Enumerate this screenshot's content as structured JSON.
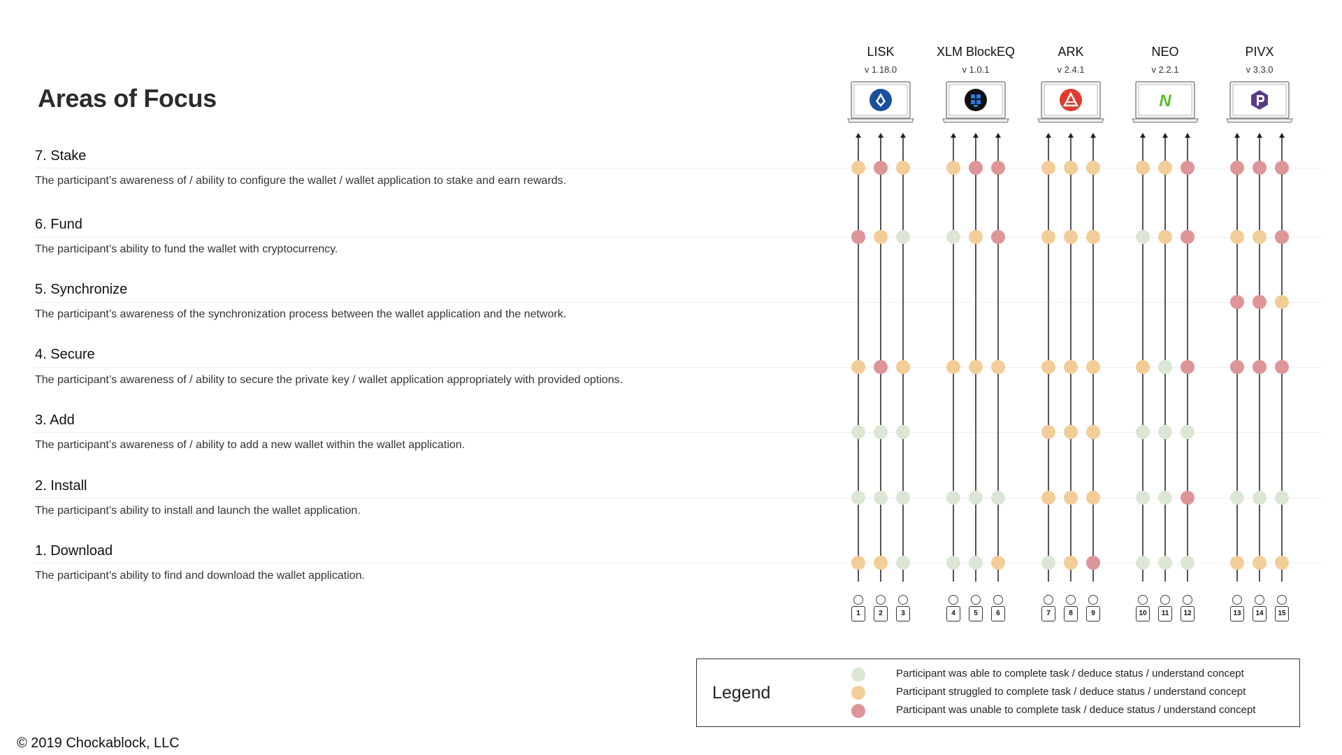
{
  "title": "Areas of Focus",
  "colors": {
    "complete": "#dbe7d4",
    "struggled": "#f3cd98",
    "unable": "#de9598"
  },
  "areas": [
    {
      "name": "7. Stake",
      "desc": "The participant’s awareness of  / ability to configure the wallet / wallet application to stake and earn rewards."
    },
    {
      "name": "6. Fund",
      "desc": "The participant’s ability to fund the wallet with cryptocurrency."
    },
    {
      "name": "5. Synchronize",
      "desc": "The participant’s awareness of the synchronization process between the wallet application and the network."
    },
    {
      "name": "4. Secure",
      "desc": "The participant’s awareness of / ability to secure the private key / wallet application appropriately with provided options."
    },
    {
      "name": "3. Add",
      "desc": "The participant’s awareness of  / ability to add a new wallet within the wallet application."
    },
    {
      "name": "2. Install",
      "desc": "The participant’s ability to install and launch the wallet application."
    },
    {
      "name": "1. Download",
      "desc": "The participant’s ability to find and download the wallet application."
    }
  ],
  "wallets": [
    {
      "name": "LISK",
      "version": "v 1.18.0",
      "icon": "lisk-logo-icon",
      "participants": [
        "1",
        "2",
        "3"
      ]
    },
    {
      "name": "XLM BlockEQ",
      "version": "v 1.0.1",
      "icon": "blockeq-logo-icon",
      "participants": [
        "4",
        "5",
        "6"
      ]
    },
    {
      "name": "ARK",
      "version": "v 2.4.1",
      "icon": "ark-logo-icon",
      "participants": [
        "7",
        "8",
        "9"
      ]
    },
    {
      "name": "NEO",
      "version": "v 2.2.1",
      "icon": "neo-logo-icon",
      "participants": [
        "10",
        "11",
        "12"
      ]
    },
    {
      "name": "PIVX",
      "version": "v 3.3.0",
      "icon": "pivx-logo-icon",
      "participants": [
        "13",
        "14",
        "15"
      ]
    }
  ],
  "status_grid": {
    "note": "rows follow areas order (Stake..Download); columns are participants 1..15; s=struggled, u=unable, c=complete, empty=not tested",
    "rows": [
      [
        "s",
        "u",
        "s",
        "s",
        "u",
        "u",
        "s",
        "s",
        "s",
        "s",
        "s",
        "u",
        "u",
        "u",
        "u"
      ],
      [
        "u",
        "s",
        "c",
        "c",
        "s",
        "u",
        "s",
        "s",
        "s",
        "c",
        "s",
        "u",
        "s",
        "s",
        "u"
      ],
      [
        "",
        "",
        "",
        "",
        "",
        "",
        "",
        "",
        "",
        "",
        "",
        "",
        "u",
        "u",
        "s"
      ],
      [
        "s",
        "u",
        "s",
        "s",
        "s",
        "s",
        "s",
        "s",
        "s",
        "s",
        "c",
        "u",
        "u",
        "u",
        "u"
      ],
      [
        "c",
        "c",
        "c",
        "",
        "",
        "",
        "s",
        "s",
        "s",
        "c",
        "c",
        "c",
        "",
        "",
        ""
      ],
      [
        "c",
        "c",
        "c",
        "c",
        "c",
        "c",
        "s",
        "s",
        "s",
        "c",
        "c",
        "u",
        "c",
        "c",
        "c"
      ],
      [
        "s",
        "s",
        "c",
        "c",
        "c",
        "s",
        "c",
        "s",
        "u",
        "c",
        "c",
        "c",
        "s",
        "s",
        "s"
      ]
    ]
  },
  "legend": {
    "title": "Legend",
    "items": [
      {
        "status": "c",
        "label": "Participant was able to complete task / deduce status / understand concept"
      },
      {
        "status": "s",
        "label": "Participant struggled to complete task / deduce status / understand concept"
      },
      {
        "status": "u",
        "label": "Participant was unable to complete task / deduce status / understand concept"
      }
    ]
  },
  "copyright": "© 2019 Chockablock, LLC"
}
